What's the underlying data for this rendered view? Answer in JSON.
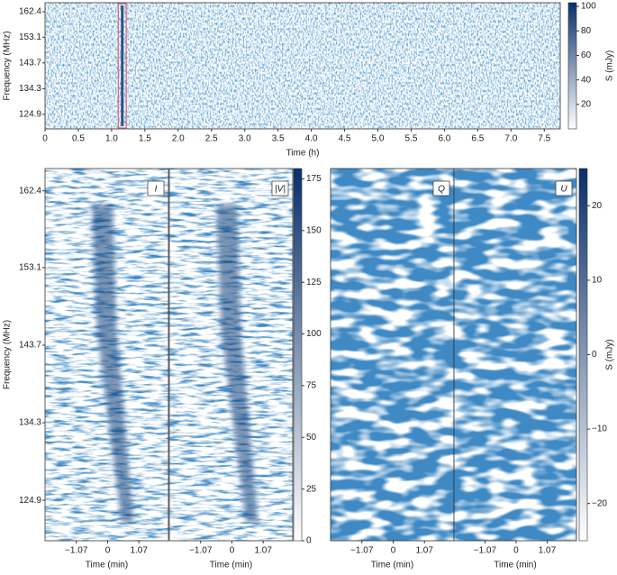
{
  "chart_data": [
    {
      "type": "heatmap",
      "xlabel": "Time (h)",
      "ylabel": "Frequency (MHz)",
      "xlim": [
        0,
        7.74
      ],
      "xticks": [
        0,
        0.5,
        {
          "value": 1,
          "label": "1.0"
        },
        1.5,
        {
          "value": 2,
          "label": "2.0"
        },
        2.5,
        {
          "value": 3,
          "label": "3.0"
        },
        3.5,
        {
          "value": 4,
          "label": "4.0"
        },
        4.5,
        {
          "value": 5,
          "label": "5.0"
        },
        5.5,
        {
          "value": 6,
          "label": "6.0"
        },
        6.5,
        {
          "value": 7,
          "label": "7.0"
        },
        7.5
      ],
      "ylim": [
        119.6,
        165.7
      ],
      "yticks": [
        124.9,
        134.3,
        143.7,
        153.1,
        162.4
      ],
      "colorbar": {
        "label": "S (mJy)",
        "lim": [
          0,
          103
        ],
        "ticks": [
          20,
          40,
          60,
          80,
          100
        ]
      },
      "cmap": [
        "#ffffff",
        "#08306b"
      ],
      "highlight": [
        1.1,
        1.22
      ],
      "highlight_color": "#e0607a"
    },
    {
      "type": "heatmap",
      "panels": [
        "I",
        "|V|"
      ],
      "xlabel": "Time (min)",
      "ylabel": "Frequency (MHz)",
      "xlim": [
        -2.14,
        2.08
      ],
      "xticks": [
        {
          "value": -1.07,
          "label": "−1.07"
        },
        0,
        1.07
      ],
      "ylim": [
        120.0,
        165.1
      ],
      "yticks": [
        124.9,
        134.3,
        143.7,
        153.1,
        162.4
      ],
      "colorbar": {
        "lim": [
          0,
          180
        ],
        "ticks": [
          0,
          25,
          50,
          75,
          100,
          125,
          150,
          175
        ]
      },
      "cmap": [
        "#ffffff",
        "#08306b"
      ]
    },
    {
      "type": "heatmap",
      "panels": [
        "Q",
        "U"
      ],
      "xlabel": "Time (min)",
      "xlim": [
        -2.14,
        2.08
      ],
      "xticks": [
        {
          "value": -1.07,
          "label": "−1.07"
        },
        0,
        1.07
      ],
      "colorbar": {
        "label": "S (mJy)",
        "lim": [
          -25,
          25
        ],
        "ticks": [
          {
            "value": -20,
            "label": "−20"
          },
          {
            "value": -10,
            "label": "−10"
          },
          0,
          10,
          20
        ]
      },
      "cmap": [
        "#ffffff",
        "#08306b"
      ]
    }
  ]
}
